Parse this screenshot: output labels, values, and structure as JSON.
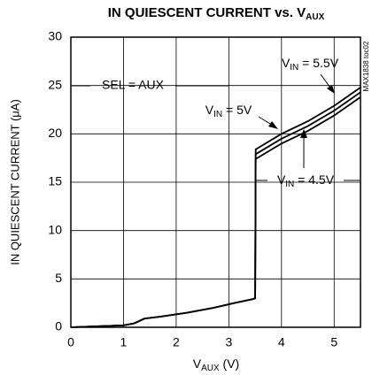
{
  "chart_data": {
    "type": "line",
    "title": {
      "text": "IN QUIESCENT CURRENT vs. V",
      "subscript": "AUX"
    },
    "x_label": {
      "text": "V",
      "subscript": "AUX",
      "suffix": " (V)"
    },
    "y_label": "IN QUIESCENT CURRENT (μA)",
    "side_note": "MAX1838 toc02",
    "annotations": [
      {
        "text": "SEL = AUX"
      },
      {
        "text": "V",
        "subscript": "IN",
        "suffix": " = 5.5V"
      },
      {
        "text": "V",
        "subscript": "IN",
        "suffix": " = 5V"
      },
      {
        "text": "V",
        "subscript": "IN",
        "suffix": " = 4.5V"
      }
    ],
    "x": [
      0,
      0.5,
      1.0,
      1.2,
      1.4,
      1.7,
      2.2,
      2.7,
      3.1,
      3.45,
      3.5,
      3.51,
      4,
      4.5,
      5,
      5.5
    ],
    "series": [
      {
        "name": "VIN = 4.5V",
        "color": "#000000",
        "values": [
          0,
          0.1,
          0.2,
          0.4,
          0.9,
          1.1,
          1.5,
          2.0,
          2.5,
          2.9,
          3.0,
          17.4,
          19.0,
          20.3,
          21.9,
          23.8
        ]
      },
      {
        "name": "VIN = 5V",
        "color": "#000000",
        "values": [
          0,
          0.1,
          0.2,
          0.4,
          0.9,
          1.1,
          1.5,
          2.0,
          2.5,
          2.9,
          3.0,
          17.9,
          19.5,
          20.8,
          22.4,
          24.3
        ]
      },
      {
        "name": "VIN = 5.5V",
        "color": "#000000",
        "values": [
          0,
          0.1,
          0.2,
          0.4,
          0.9,
          1.1,
          1.5,
          2.0,
          2.5,
          2.9,
          3.0,
          18.4,
          20.0,
          21.3,
          22.9,
          24.8
        ]
      }
    ],
    "xlim": [
      0,
      5.5
    ],
    "xticks": [
      0,
      1,
      2,
      3,
      4,
      5
    ],
    "ylim": [
      0,
      30
    ],
    "yticks": [
      0,
      5,
      10,
      15,
      20,
      25,
      30
    ],
    "grid": true
  }
}
